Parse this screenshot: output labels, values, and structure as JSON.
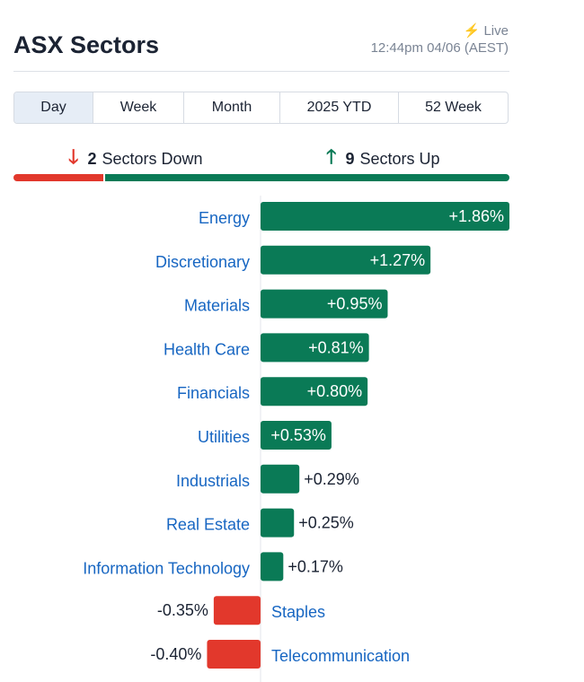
{
  "header": {
    "title": "ASX Sectors",
    "live_label": "Live",
    "timestamp": "12:44pm 04/06 (AEST)"
  },
  "tabs": [
    {
      "label": "Day",
      "active": true
    },
    {
      "label": "Week",
      "active": false
    },
    {
      "label": "Month",
      "active": false
    },
    {
      "label": "2025 YTD",
      "active": false
    },
    {
      "label": "52 Week",
      "active": false
    }
  ],
  "summary": {
    "down_count": "2",
    "down_text": "Sectors Down",
    "up_count": "9",
    "up_text": "Sectors Up"
  },
  "colors": {
    "up": "#0a7a56",
    "down": "#e2382c",
    "label": "#1766c2"
  },
  "chart_data": {
    "type": "bar",
    "orientation": "horizontal",
    "unit": "%",
    "categories": [
      "Energy",
      "Discretionary",
      "Materials",
      "Health Care",
      "Financials",
      "Utilities",
      "Industrials",
      "Real Estate",
      "Information Technology",
      "Staples",
      "Telecommunication"
    ],
    "values": [
      1.86,
      1.27,
      0.95,
      0.81,
      0.8,
      0.53,
      0.29,
      0.25,
      0.17,
      -0.35,
      -0.4
    ],
    "labels": [
      "+1.86%",
      "+1.27%",
      "+0.95%",
      "+0.81%",
      "+0.80%",
      "+0.53%",
      "+0.29%",
      "+0.25%",
      "+0.17%",
      "-0.35%",
      "-0.40%"
    ]
  }
}
